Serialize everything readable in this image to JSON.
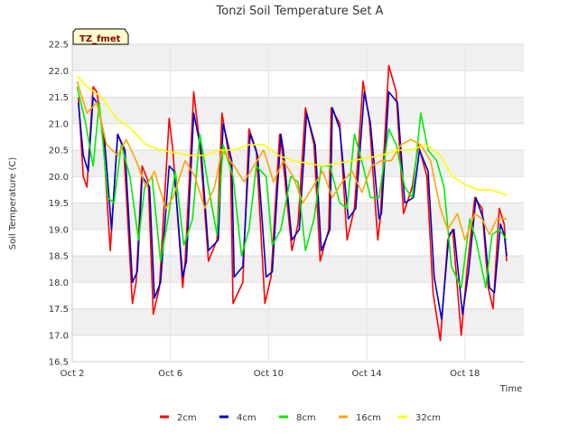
{
  "chart_data": {
    "type": "line",
    "title": "Tonzi Soil Temperature Set A",
    "xlabel": "Time",
    "ylabel": "Soil Temperature (C)",
    "badge": "TZ_fmet",
    "ylim": [
      16.5,
      22.5
    ],
    "xlim": [
      0,
      18.4
    ],
    "x_unit": "days since Oct 2",
    "y_ticks": [
      "16.5",
      "17.0",
      "17.5",
      "18.0",
      "18.5",
      "19.0",
      "19.5",
      "20.0",
      "20.5",
      "21.0",
      "21.5",
      "22.0",
      "22.5"
    ],
    "x_ticks": [
      {
        "x": 0,
        "label": "Oct 2"
      },
      {
        "x": 4,
        "label": "Oct 6"
      },
      {
        "x": 8,
        "label": "Oct 10"
      },
      {
        "x": 12,
        "label": "Oct 14"
      },
      {
        "x": 16,
        "label": "Oct 18"
      }
    ],
    "grid": true,
    "legend_position": "bottom",
    "series": [
      {
        "name": "2cm",
        "color": "#ff0000",
        "x": [
          0.25,
          0.45,
          0.6,
          0.85,
          1.0,
          1.25,
          1.55,
          1.85,
          2.1,
          2.45,
          2.6,
          2.85,
          3.1,
          3.3,
          3.55,
          3.95,
          4.1,
          4.5,
          4.6,
          4.95,
          5.2,
          5.55,
          5.9,
          6.1,
          6.45,
          6.55,
          6.95,
          7.2,
          7.5,
          7.85,
          8.1,
          8.45,
          8.55,
          8.95,
          9.2,
          9.5,
          9.85,
          10.1,
          10.45,
          10.55,
          10.9,
          11.2,
          11.5,
          11.85,
          12.1,
          12.45,
          12.55,
          12.9,
          13.2,
          13.5,
          13.85,
          14.1,
          14.45,
          14.7,
          15.0,
          15.3,
          15.5,
          15.85,
          16.1,
          16.4,
          16.7,
          16.95,
          17.15,
          17.4,
          17.6,
          17.7
        ],
        "y": [
          21.5,
          20.0,
          19.8,
          21.7,
          21.6,
          20.8,
          18.6,
          20.8,
          20.5,
          17.6,
          18.0,
          20.2,
          19.9,
          17.4,
          17.9,
          21.1,
          20.5,
          17.9,
          18.4,
          21.6,
          20.6,
          18.4,
          18.8,
          21.2,
          20.2,
          17.6,
          18.0,
          20.9,
          20.5,
          17.6,
          18.1,
          20.8,
          20.5,
          18.6,
          19.1,
          21.3,
          20.6,
          18.4,
          19.0,
          21.3,
          21.0,
          18.8,
          19.4,
          21.8,
          21.1,
          18.8,
          19.2,
          22.1,
          21.6,
          19.3,
          19.8,
          20.6,
          20.0,
          17.8,
          16.9,
          18.8,
          19.0,
          17.0,
          18.3,
          19.6,
          19.4,
          17.9,
          17.5,
          19.4,
          19.1,
          18.4
        ]
      },
      {
        "name": "4cm",
        "color": "#0000cc",
        "x": [
          0.25,
          0.45,
          0.65,
          0.85,
          1.0,
          1.3,
          1.6,
          1.85,
          2.15,
          2.45,
          2.65,
          2.85,
          3.15,
          3.35,
          3.6,
          3.95,
          4.15,
          4.5,
          4.65,
          4.95,
          5.25,
          5.55,
          5.95,
          6.15,
          6.5,
          6.6,
          6.95,
          7.25,
          7.55,
          7.9,
          8.15,
          8.5,
          8.6,
          8.95,
          9.25,
          9.55,
          9.9,
          10.15,
          10.5,
          10.6,
          10.9,
          11.25,
          11.55,
          11.9,
          12.15,
          12.5,
          12.6,
          12.9,
          13.25,
          13.55,
          13.9,
          14.15,
          14.5,
          14.75,
          15.05,
          15.35,
          15.55,
          15.9,
          16.15,
          16.45,
          16.75,
          17.0,
          17.2,
          17.45,
          17.6,
          17.7
        ],
        "y": [
          21.4,
          20.4,
          20.1,
          21.5,
          21.4,
          20.8,
          19.0,
          20.8,
          20.5,
          18.0,
          18.2,
          20.0,
          19.8,
          17.7,
          18.0,
          20.2,
          20.1,
          18.1,
          18.4,
          21.2,
          20.5,
          18.6,
          18.8,
          21.0,
          20.3,
          18.1,
          18.3,
          20.8,
          20.4,
          18.1,
          18.2,
          20.8,
          20.5,
          18.8,
          19.0,
          21.2,
          20.6,
          18.6,
          19.0,
          21.3,
          20.9,
          19.2,
          19.4,
          21.6,
          21.0,
          19.2,
          19.3,
          21.6,
          21.4,
          19.5,
          19.6,
          20.5,
          20.1,
          18.1,
          17.3,
          18.9,
          19.0,
          17.4,
          18.2,
          19.6,
          19.2,
          17.9,
          17.8,
          19.1,
          18.9,
          18.5
        ]
      },
      {
        "name": "8cm",
        "color": "#00ee00",
        "x": [
          0.2,
          0.55,
          0.85,
          1.1,
          1.45,
          1.7,
          2.0,
          2.35,
          2.7,
          2.95,
          3.25,
          3.6,
          3.9,
          4.2,
          4.55,
          4.9,
          5.2,
          5.55,
          5.9,
          6.15,
          6.55,
          6.9,
          7.2,
          7.5,
          7.9,
          8.15,
          8.5,
          8.9,
          9.2,
          9.5,
          9.85,
          10.15,
          10.5,
          10.9,
          11.2,
          11.5,
          11.85,
          12.15,
          12.5,
          12.9,
          13.2,
          13.55,
          13.85,
          14.2,
          14.5,
          14.85,
          15.15,
          15.45,
          15.85,
          16.2,
          16.45,
          16.85,
          17.1,
          17.4,
          17.7
        ],
        "y": [
          21.7,
          21.0,
          20.2,
          21.4,
          19.6,
          19.5,
          20.6,
          20.0,
          18.8,
          19.8,
          20.0,
          18.4,
          19.2,
          20.1,
          18.7,
          19.2,
          20.8,
          19.8,
          18.9,
          20.6,
          20.0,
          18.5,
          19.0,
          20.2,
          20.0,
          18.7,
          19.0,
          20.0,
          19.9,
          18.6,
          19.2,
          20.2,
          20.2,
          19.5,
          19.4,
          20.8,
          20.2,
          19.6,
          19.6,
          20.9,
          20.6,
          19.8,
          19.6,
          21.2,
          20.5,
          20.3,
          19.8,
          18.3,
          17.9,
          19.2,
          18.8,
          17.9,
          18.9,
          19.0,
          18.8
        ]
      },
      {
        "name": "16cm",
        "color": "#ffa500",
        "x": [
          0.2,
          0.6,
          1.0,
          1.4,
          1.85,
          2.2,
          2.6,
          3.0,
          3.35,
          3.8,
          4.1,
          4.6,
          5.0,
          5.4,
          5.8,
          6.1,
          6.6,
          7.0,
          7.4,
          7.8,
          8.2,
          8.6,
          9.0,
          9.4,
          9.8,
          10.2,
          10.6,
          11.0,
          11.4,
          11.8,
          12.2,
          12.6,
          13.0,
          13.4,
          13.8,
          14.2,
          14.6,
          15.0,
          15.3,
          15.7,
          16.0,
          16.4,
          16.7,
          17.0,
          17.3,
          17.5,
          17.7
        ],
        "y": [
          21.8,
          21.2,
          21.4,
          20.6,
          20.4,
          20.7,
          20.3,
          19.8,
          20.1,
          19.4,
          19.6,
          20.3,
          20.0,
          19.4,
          19.8,
          20.5,
          20.2,
          19.9,
          20.2,
          20.5,
          19.9,
          20.3,
          20.0,
          19.5,
          19.8,
          20.1,
          19.6,
          19.9,
          20.1,
          19.7,
          20.2,
          20.3,
          20.3,
          20.6,
          20.7,
          20.6,
          20.3,
          19.4,
          19.0,
          19.3,
          18.8,
          19.3,
          19.2,
          18.9,
          19.2,
          19.2,
          19.2
        ]
      },
      {
        "name": "32cm",
        "color": "#ffff00",
        "x": [
          0.2,
          0.6,
          1.2,
          1.8,
          2.4,
          3.0,
          3.6,
          4.2,
          4.8,
          5.4,
          6.0,
          6.6,
          7.2,
          7.8,
          8.4,
          9.0,
          9.6,
          10.2,
          10.8,
          11.4,
          12.0,
          12.6,
          13.2,
          13.8,
          14.4,
          15.0,
          15.5,
          16.0,
          16.5,
          17.0,
          17.4,
          17.7
        ],
        "y": [
          21.9,
          21.7,
          21.5,
          21.1,
          20.9,
          20.6,
          20.5,
          20.45,
          20.4,
          20.4,
          20.5,
          20.5,
          20.6,
          20.6,
          20.4,
          20.3,
          20.25,
          20.2,
          20.25,
          20.3,
          20.35,
          20.4,
          20.5,
          20.5,
          20.6,
          20.4,
          20.0,
          19.85,
          19.75,
          19.75,
          19.7,
          19.65
        ]
      }
    ]
  }
}
